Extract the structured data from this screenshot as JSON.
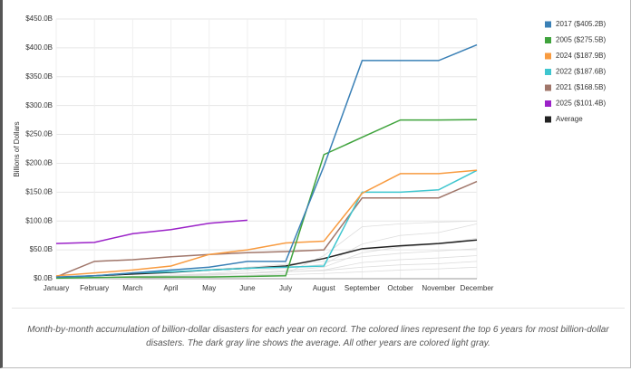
{
  "chart_data": {
    "type": "line",
    "y_label": "Billions of Dollars",
    "caption": "Month-by-month accumulation of billion-dollar disasters for each year on record. The colored lines represent the top 6 years for most billion-dollar disasters. The dark gray line shows the average. All other years are colored light gray.",
    "categories": [
      "January",
      "February",
      "March",
      "April",
      "May",
      "June",
      "July",
      "August",
      "September",
      "October",
      "November",
      "December"
    ],
    "ylim": [
      0,
      450
    ],
    "yticks": [
      {
        "value": 0,
        "label": "$0.0B"
      },
      {
        "value": 50,
        "label": "$50.0B"
      },
      {
        "value": 100,
        "label": "$100.0B"
      },
      {
        "value": 150,
        "label": "$150.0B"
      },
      {
        "value": 200,
        "label": "$200.0B"
      },
      {
        "value": 250,
        "label": "$250.0B"
      },
      {
        "value": 300,
        "label": "$300.0B"
      },
      {
        "value": 350,
        "label": "$350.0B"
      },
      {
        "value": 400,
        "label": "$400.0B"
      },
      {
        "value": 450,
        "label": "$450.0B"
      }
    ],
    "grid": true,
    "legend": "right",
    "background_series": [
      {
        "color": "#dddddd",
        "values": [
          1,
          2,
          4,
          6,
          9,
          14,
          18,
          25,
          60,
          75,
          80,
          95
        ]
      },
      {
        "color": "#dddddd",
        "values": [
          0,
          1,
          3,
          5,
          8,
          10,
          14,
          20,
          45,
          55,
          60,
          70
        ]
      },
      {
        "color": "#dddddd",
        "values": [
          2,
          4,
          8,
          12,
          16,
          20,
          25,
          30,
          38,
          44,
          48,
          52
        ]
      },
      {
        "color": "#dddddd",
        "values": [
          0,
          1,
          2,
          4,
          6,
          9,
          12,
          15,
          28,
          33,
          36,
          40
        ]
      },
      {
        "color": "#dddddd",
        "values": [
          1,
          2,
          3,
          5,
          7,
          10,
          12,
          14,
          20,
          24,
          26,
          30
        ]
      },
      {
        "color": "#dddddd",
        "values": [
          0,
          0,
          1,
          2,
          3,
          5,
          7,
          9,
          12,
          15,
          17,
          20
        ]
      },
      {
        "color": "#dddddd",
        "values": [
          0,
          1,
          2,
          3,
          4,
          6,
          9,
          40,
          90,
          95,
          98,
          100
        ]
      }
    ],
    "series": [
      {
        "name": "2017 ($405.2B)",
        "color": "#3a80b6",
        "values": [
          3,
          5,
          10,
          15,
          20,
          30,
          30,
          195,
          378,
          378,
          378,
          405.2
        ]
      },
      {
        "name": "2005 ($275.5B)",
        "color": "#3fa33c",
        "values": [
          1,
          2,
          3,
          3,
          3,
          4,
          5,
          215,
          245,
          275,
          275,
          275.5
        ]
      },
      {
        "name": "2024 ($187.9B)",
        "color": "#f89b40",
        "values": [
          5,
          10,
          15,
          22,
          42,
          50,
          62,
          65,
          148,
          182,
          182,
          187.9
        ]
      },
      {
        "name": "2022 ($187.6B)",
        "color": "#3fc6cf",
        "values": [
          2,
          5,
          10,
          12,
          15,
          18,
          20,
          22,
          150,
          150,
          154,
          187.6
        ]
      },
      {
        "name": "2021 ($168.5B)",
        "color": "#a0766a",
        "values": [
          3,
          30,
          33,
          38,
          42,
          45,
          47,
          50,
          140,
          140,
          140,
          168.5
        ]
      },
      {
        "name": "2025 ($101.4B)",
        "color": "#9b22c8",
        "values": [
          61,
          63,
          78,
          85,
          96,
          101.4,
          null,
          null,
          null,
          null,
          null,
          null
        ]
      },
      {
        "name": "Average",
        "color": "#222222",
        "values": [
          2,
          5,
          8,
          11,
          15,
          18,
          22,
          35,
          52,
          57,
          61,
          67
        ]
      }
    ]
  }
}
